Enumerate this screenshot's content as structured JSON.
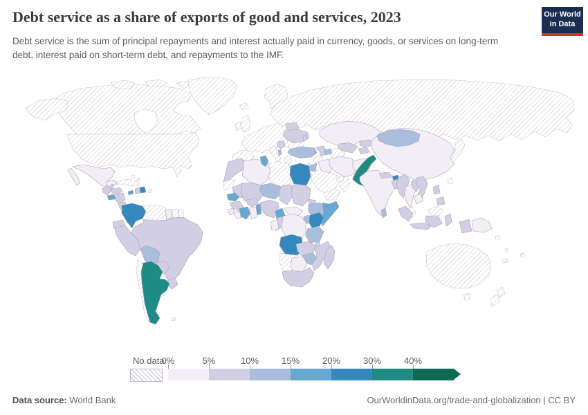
{
  "header": {
    "title": "Debt service as a share of exports of good and services, 2023",
    "subtitle": "Debt service is the sum of principal repayments and interest actually paid in currency, goods, or services on long-term debt, interest paid on short-term debt, and repayments to the IMF.",
    "logo": {
      "line1": "Our World",
      "line2": "in Data",
      "bg_color": "#1b2e4f",
      "accent_color": "#cf3335"
    }
  },
  "legend": {
    "no_data_label": "No data",
    "tick_labels": [
      "0%",
      "5%",
      "10%",
      "15%",
      "20%",
      "30%",
      "40%"
    ]
  },
  "footer": {
    "source_label": "Data source:",
    "source_value": "World Bank",
    "right_text": "OurWorldinData.org/trade-and-globalization | CC BY"
  },
  "chart_data": {
    "type": "choropleth_map",
    "title": "Debt service as a share of exports of good and services, 2023",
    "unit": "% of exports of goods and services",
    "legend_style": "binned color scale with hatched no-data pattern",
    "bins": [
      {
        "range": "0-5%",
        "color": "#f3eef5"
      },
      {
        "range": "5-10%",
        "color": "#d2cee4"
      },
      {
        "range": "10-15%",
        "color": "#a9bddc"
      },
      {
        "range": "15-20%",
        "color": "#65a8d2"
      },
      {
        "range": "20-30%",
        "color": "#3588bd"
      },
      {
        "range": "30-40%",
        "color": "#1f8b85"
      },
      {
        "range": "40%+",
        "color": "#0e6b52"
      }
    ],
    "country_values": {
      "Mexico": "0-5%",
      "Guyana": "0-5%",
      "Algeria": "0-5%",
      "Ghana": "0-5%",
      "Sierra Leone": "0-5%",
      "Liberia": "0-5%",
      "Central African Republic": "0-5%",
      "Democratic Republic of Congo": "0-5%",
      "Gabon": "0-5%",
      "Botswana": "0-5%",
      "Iraq": "0-5%",
      "Iran": "0-5%",
      "Afghanistan": "0-5%",
      "Kazakhstan": "0-5%",
      "China": "0-5%",
      "India": "0-5%",
      "Thailand": "0-5%",
      "Cambodia": "0-5%",
      "Papua New Guinea": "0-5%",
      "Guatemala": "5-10%",
      "Belize": "5-10%",
      "Honduras": "5-10%",
      "Nicaragua": "5-10%",
      "Costa Rica": "5-10%",
      "Panama": "5-10%",
      "Haiti": "5-10%",
      "Ecuador": "5-10%",
      "Peru": "5-10%",
      "Brazil": "5-10%",
      "Paraguay": "5-10%",
      "Uruguay": "5-10%",
      "Morocco": "5-10%",
      "Mauritania": "5-10%",
      "Mali": "5-10%",
      "Burkina Faso": "5-10%",
      "Guinea": "5-10%",
      "Nigeria": "5-10%",
      "Chad": "5-10%",
      "Sudan": "5-10%",
      "Eritrea": "5-10%",
      "Republic of Congo": "5-10%",
      "Zambia": "5-10%",
      "Malawi": "5-10%",
      "Mozambique": "5-10%",
      "South Africa": "5-10%",
      "Madagascar": "5-10%",
      "Belarus": "5-10%",
      "Ukraine": "5-10%",
      "Moldova": "5-10%",
      "Serbia": "5-10%",
      "Georgia": "5-10%",
      "Armenia": "5-10%",
      "Uzbekistan": "5-10%",
      "Kyrgyzstan": "5-10%",
      "Tajikistan": "5-10%",
      "Nepal": "5-10%",
      "Bangladesh": "5-10%",
      "Myanmar": "5-10%",
      "Laos": "5-10%",
      "Vietnam": "5-10%",
      "Philippines": "5-10%",
      "Indonesia": "5-10%",
      "Bolivia": "10-15%",
      "Niger": "10-15%",
      "Ethiopia": "10-15%",
      "Uganda": "10-15%",
      "Tanzania": "10-15%",
      "Zimbabwe": "10-15%",
      "Albania": "10-15%",
      "Turkey": "10-15%",
      "Azerbaijan": "10-15%",
      "Jordan": "10-15%",
      "Mongolia": "10-15%",
      "Sri Lanka": "10-15%",
      "El Salvador": "15-20%",
      "Jamaica": "15-20%",
      "Senegal": "15-20%",
      "Cote d'Ivoire": "15-20%",
      "Benin": "15-20%",
      "Cameroon": "15-20%",
      "Somalia": "15-20%",
      "Tunisia": "15-20%",
      "Dominican Republic": "20-30%",
      "Colombia": "20-30%",
      "Egypt": "20-30%",
      "Kenya": "20-30%",
      "Angola": "20-30%",
      "Bhutan": "20-30%",
      "Argentina": "30-40%",
      "Pakistan": "30-40%",
      "Canada": "No data",
      "United States": "No data",
      "Greenland": "No data",
      "Iceland": "No data",
      "Arctic Islands": "No data",
      "Cuba": "No data",
      "Puerto Rico": "No data",
      "Bahamas": "No data",
      "Venezuela": "No data",
      "Suriname": "No data",
      "French Guiana": "No data",
      "Chile": "No data",
      "Falkland Islands": "No data",
      "United Kingdom": "No data",
      "Ireland": "No data",
      "Scandinavia": "No data",
      "Western Europe": "No data",
      "Iberia": "No data",
      "Italy": "No data",
      "Greece": "No data",
      "Romania and Bulgaria": "No data",
      "Russia": "No data",
      "Syria": "No data",
      "Israel": "No data",
      "Saudi Arabia": "No data",
      "Yemen": "No data",
      "Oman": "No data",
      "United Arab Emirates": "No data",
      "Turkmenistan": "No data",
      "Libya": "No data",
      "Western Sahara": "No data",
      "Namibia": "No data",
      "Malaysia": "No data",
      "Korea": "No data",
      "Japan": "No data",
      "Taiwan": "No data",
      "Australia": "No data",
      "New Zealand": "No data",
      "Solomon Islands": "No data",
      "Vanuatu": "No data",
      "Fiji": "No data",
      "New Caledonia": "No data"
    }
  }
}
